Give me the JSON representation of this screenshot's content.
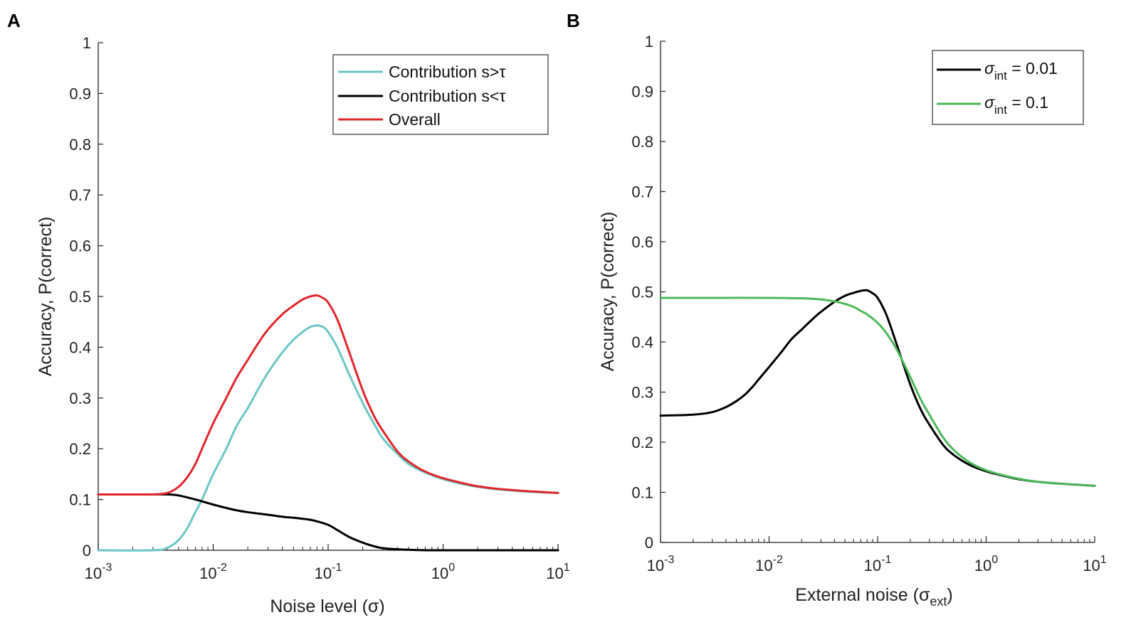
{
  "chart_data": [
    {
      "panel": "A",
      "type": "line",
      "xscale": "log",
      "xlim": [
        0.001,
        10
      ],
      "ylim": [
        0,
        1
      ],
      "xticks": [
        0.001,
        0.01,
        0.1,
        1,
        10
      ],
      "xtick_labels": [
        {
          "base": "10",
          "exp": "-3"
        },
        {
          "base": "10",
          "exp": "-2"
        },
        {
          "base": "10",
          "exp": "-1"
        },
        {
          "base": "10",
          "exp": "0"
        },
        {
          "base": "10",
          "exp": "1"
        }
      ],
      "yticks": [
        "0",
        "0.1",
        "0.2",
        "0.3",
        "0.4",
        "0.5",
        "0.6",
        "0.7",
        "0.8",
        "0.9",
        "1"
      ],
      "xlabel": "Noise level (σ)",
      "ylabel": "Accuracy, P(correct)",
      "legend_position": "top-right",
      "series": [
        {
          "name": "Contribution s>τ",
          "color": "#6cc6c6",
          "x": [
            0.001,
            0.003,
            0.004,
            0.005,
            0.006,
            0.007,
            0.008,
            0.01,
            0.013,
            0.016,
            0.02,
            0.025,
            0.03,
            0.04,
            0.05,
            0.06,
            0.07,
            0.08,
            0.09,
            0.1,
            0.12,
            0.15,
            0.2,
            0.25,
            0.3,
            0.4,
            0.5,
            0.7,
            1,
            1.5,
            2,
            3,
            5,
            7,
            10
          ],
          "y": [
            0.0,
            0.0,
            0.005,
            0.02,
            0.045,
            0.075,
            0.1,
            0.15,
            0.2,
            0.245,
            0.28,
            0.32,
            0.35,
            0.39,
            0.415,
            0.43,
            0.44,
            0.443,
            0.44,
            0.43,
            0.4,
            0.35,
            0.29,
            0.25,
            0.22,
            0.19,
            0.17,
            0.153,
            0.14,
            0.13,
            0.125,
            0.12,
            0.116,
            0.114,
            0.113
          ]
        },
        {
          "name": "Contribution s<τ",
          "color": "#000000",
          "x": [
            0.001,
            0.002,
            0.003,
            0.004,
            0.005,
            0.007,
            0.01,
            0.015,
            0.02,
            0.03,
            0.04,
            0.05,
            0.06,
            0.07,
            0.08,
            0.1,
            0.12,
            0.15,
            0.2,
            0.25,
            0.3,
            0.4,
            0.5,
            0.7,
            1,
            2,
            5,
            10
          ],
          "y": [
            0.11,
            0.11,
            0.11,
            0.11,
            0.108,
            0.1,
            0.09,
            0.08,
            0.075,
            0.07,
            0.066,
            0.064,
            0.062,
            0.06,
            0.057,
            0.05,
            0.04,
            0.027,
            0.015,
            0.008,
            0.004,
            0.002,
            0.001,
            0.0,
            0.0,
            0.0,
            0.0,
            0.0
          ]
        },
        {
          "name": "Overall",
          "color": "#e0262b",
          "x": [
            0.001,
            0.002,
            0.003,
            0.004,
            0.005,
            0.006,
            0.007,
            0.008,
            0.01,
            0.013,
            0.016,
            0.02,
            0.025,
            0.03,
            0.04,
            0.05,
            0.06,
            0.07,
            0.08,
            0.09,
            0.1,
            0.12,
            0.15,
            0.2,
            0.25,
            0.3,
            0.4,
            0.5,
            0.7,
            1,
            1.5,
            2,
            3,
            5,
            7,
            10
          ],
          "y": [
            0.11,
            0.11,
            0.11,
            0.113,
            0.125,
            0.145,
            0.17,
            0.2,
            0.25,
            0.3,
            0.34,
            0.375,
            0.41,
            0.435,
            0.465,
            0.482,
            0.494,
            0.5,
            0.502,
            0.497,
            0.488,
            0.455,
            0.395,
            0.315,
            0.265,
            0.235,
            0.195,
            0.175,
            0.155,
            0.142,
            0.132,
            0.126,
            0.121,
            0.117,
            0.115,
            0.113
          ]
        }
      ]
    },
    {
      "panel": "B",
      "type": "line",
      "xscale": "log",
      "xlim": [
        0.001,
        10
      ],
      "ylim": [
        0,
        1
      ],
      "xticks": [
        0.001,
        0.01,
        0.1,
        1,
        10
      ],
      "xtick_labels": [
        {
          "base": "10",
          "exp": "-3"
        },
        {
          "base": "10",
          "exp": "-2"
        },
        {
          "base": "10",
          "exp": "-1"
        },
        {
          "base": "10",
          "exp": "0"
        },
        {
          "base": "10",
          "exp": "1"
        }
      ],
      "yticks": [
        "0",
        "0.1",
        "0.2",
        "0.3",
        "0.4",
        "0.5",
        "0.6",
        "0.7",
        "0.8",
        "0.9",
        "1"
      ],
      "xlabel": "External noise (σext)",
      "xlabel_main": "External noise  (σ",
      "xlabel_sub": "ext",
      "xlabel_close": ")",
      "ylabel": "Accuracy, P(correct)",
      "legend_position": "top-right",
      "series": [
        {
          "name": "σint = 0.01",
          "legend_symbol": "σ",
          "legend_sub": "int",
          "legend_value": " = 0.01",
          "color": "#000000",
          "x": [
            0.001,
            0.002,
            0.003,
            0.004,
            0.005,
            0.006,
            0.007,
            0.008,
            0.01,
            0.013,
            0.016,
            0.02,
            0.025,
            0.03,
            0.04,
            0.05,
            0.06,
            0.07,
            0.08,
            0.09,
            0.1,
            0.12,
            0.15,
            0.2,
            0.25,
            0.3,
            0.4,
            0.5,
            0.7,
            1,
            1.5,
            2,
            3,
            5,
            7,
            10
          ],
          "y": [
            0.253,
            0.255,
            0.26,
            0.27,
            0.282,
            0.295,
            0.31,
            0.325,
            0.35,
            0.38,
            0.405,
            0.425,
            0.445,
            0.46,
            0.48,
            0.492,
            0.498,
            0.502,
            0.503,
            0.497,
            0.488,
            0.455,
            0.395,
            0.315,
            0.265,
            0.235,
            0.195,
            0.175,
            0.155,
            0.142,
            0.132,
            0.126,
            0.121,
            0.117,
            0.115,
            0.113
          ]
        },
        {
          "name": "σint = 0.1",
          "legend_symbol": "σ",
          "legend_sub": "int",
          "legend_value": " = 0.1",
          "color": "#4cb85a",
          "x": [
            0.001,
            0.003,
            0.01,
            0.02,
            0.03,
            0.04,
            0.05,
            0.06,
            0.07,
            0.08,
            0.1,
            0.12,
            0.15,
            0.2,
            0.25,
            0.3,
            0.4,
            0.5,
            0.7,
            1,
            1.5,
            2,
            3,
            5,
            7,
            10
          ],
          "y": [
            0.488,
            0.488,
            0.488,
            0.487,
            0.485,
            0.481,
            0.476,
            0.47,
            0.462,
            0.455,
            0.438,
            0.418,
            0.385,
            0.33,
            0.285,
            0.255,
            0.21,
            0.185,
            0.16,
            0.144,
            0.133,
            0.127,
            0.121,
            0.117,
            0.115,
            0.113
          ]
        }
      ]
    }
  ]
}
